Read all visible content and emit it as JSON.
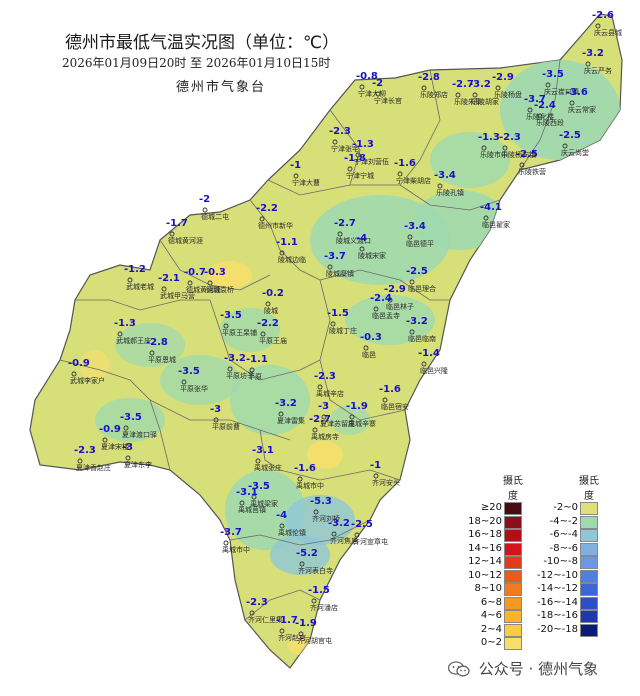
{
  "title": "德州市最低气温实况图（单位：℃）",
  "period": "2026年01月09日20时  至  2026年01月10日15时",
  "agency": "德州市气象台",
  "legend": {
    "header_left": "摄氏\n度",
    "header_right": "摄氏\n度",
    "warm": [
      {
        "label": "≥20",
        "color": "#4a0a14"
      },
      {
        "label": "18~20",
        "color": "#8a0f1c"
      },
      {
        "label": "16~18",
        "color": "#b01015"
      },
      {
        "label": "14~16",
        "color": "#d4141a"
      },
      {
        "label": "12~14",
        "color": "#e33a18"
      },
      {
        "label": "10~12",
        "color": "#eb5a1c"
      },
      {
        "label": "8~10",
        "color": "#f07a1e"
      },
      {
        "label": "6~8",
        "color": "#f39a22"
      },
      {
        "label": "4~6",
        "color": "#f6b52c"
      },
      {
        "label": "2~4",
        "color": "#f8cc44"
      },
      {
        "label": "0~2",
        "color": "#f7df6a"
      }
    ],
    "cold": [
      {
        "label": "-2~0",
        "color": "#dfe07a"
      },
      {
        "label": "-4~-2",
        "color": "#9ed9b0"
      },
      {
        "label": "-6~-4",
        "color": "#8fc7d8"
      },
      {
        "label": "-8~-6",
        "color": "#7fb0e2"
      },
      {
        "label": "-10~-8",
        "color": "#6a98e4"
      },
      {
        "label": "-12~-10",
        "color": "#517fdf"
      },
      {
        "label": "-14~-12",
        "color": "#3a66d6"
      },
      {
        "label": "-16~-14",
        "color": "#2a50c4"
      },
      {
        "label": "-18~-16",
        "color": "#1e3aa8"
      },
      {
        "label": "-20~-18",
        "color": "#0c1a78"
      }
    ]
  },
  "stations": [
    {
      "value": "-2.6",
      "name": "庆云县城"
    },
    {
      "value": "-3.2",
      "name": "庆云严务"
    },
    {
      "value": "-3.5",
      "name": "庆云崔口镇"
    },
    {
      "value": "-3.6",
      "name": "庆云常家"
    },
    {
      "value": "-2.5",
      "name": "庆云尚堂"
    },
    {
      "value": "-2.9",
      "name": "乐陵杨盘"
    },
    {
      "value": "-2.7",
      "name": "乐陵朱集"
    },
    {
      "value": "-3.2",
      "name": "乐陵胡家"
    },
    {
      "value": "-2.8",
      "name": "乐陵郑店"
    },
    {
      "value": "-3.7",
      "name": "乐陵化楼"
    },
    {
      "value": "-2.4",
      "name": "乐陵西段"
    },
    {
      "value": "-2.5",
      "name": "乐陵铁营"
    },
    {
      "value": "-1.3",
      "name": "乐陵市中"
    },
    {
      "value": "-2.3",
      "name": "乐陵杨安镇"
    },
    {
      "value": "-0.8",
      "name": "宁津大柳"
    },
    {
      "value": "-2",
      "name": "宁津长官"
    },
    {
      "value": "-2.3",
      "name": "宁津张宅"
    },
    {
      "value": "-1.3",
      "name": "宁津刘营伍"
    },
    {
      "value": "-1.8",
      "name": "宁津宁城"
    },
    {
      "value": "-1.6",
      "name": "宁津柴胡店"
    },
    {
      "value": "-3.4",
      "name": "乐陵孔镇"
    },
    {
      "value": "-1",
      "name": "宁津大曹"
    },
    {
      "value": "-2",
      "name": "德城二屯"
    },
    {
      "value": "-2.2",
      "name": "德州市新华"
    },
    {
      "value": "-1.7",
      "name": "德城黄河涯"
    },
    {
      "value": "-2.7",
      "name": "陵城义渡口"
    },
    {
      "value": "-3.4",
      "name": "临邑德平"
    },
    {
      "value": "-4.1",
      "name": "临邑翟家"
    },
    {
      "value": "-1.1",
      "name": "陵城边临"
    },
    {
      "value": "-3.7",
      "name": "陵城糜镇"
    },
    {
      "value": "-4",
      "name": "陵城宋家"
    },
    {
      "value": "-2.5",
      "name": "临邑理合"
    },
    {
      "value": "-1.2",
      "name": "武城老城"
    },
    {
      "value": "-2.1",
      "name": "武城甲马营"
    },
    {
      "value": "-0.7",
      "name": "德城黄河涯"
    },
    {
      "value": "-0.3",
      "name": "德城袁桥"
    },
    {
      "value": "-0.2",
      "name": "陵城"
    },
    {
      "value": "-2.9",
      "name": "临邑林子"
    },
    {
      "value": "-2.4",
      "name": "临邑孟寺"
    },
    {
      "value": "-1.5",
      "name": "陵城丁庄"
    },
    {
      "value": "-3.5",
      "name": "平原王杲铺"
    },
    {
      "value": "-2.2",
      "name": "平原王庙"
    },
    {
      "value": "-1.3",
      "name": "武城郝王庄"
    },
    {
      "value": "-2.8",
      "name": "平原恩城"
    },
    {
      "value": "-3.2",
      "name": "临邑临南"
    },
    {
      "value": "-0.3",
      "name": "临邑"
    },
    {
      "value": "-1.4",
      "name": "临邑兴隆"
    },
    {
      "value": "-0.9",
      "name": "武城李家户"
    },
    {
      "value": "-3.2",
      "name": "平原坊子"
    },
    {
      "value": "-1.1",
      "name": "平原"
    },
    {
      "value": "-3.5",
      "name": "平原张华"
    },
    {
      "value": "-2.3",
      "name": "禹城辛店"
    },
    {
      "value": "-1.6",
      "name": "临邑宿安"
    },
    {
      "value": "-3.2",
      "name": "夏津雷集"
    },
    {
      "value": "-3",
      "name": "夏津苏留庄"
    },
    {
      "value": "-3.5",
      "name": "夏津渡口驿"
    },
    {
      "value": "-3",
      "name": "平原前曹"
    },
    {
      "value": "-2.7",
      "name": "禹城房寺"
    },
    {
      "value": "-1.9",
      "name": "禹城辛寨"
    },
    {
      "value": "-2.3",
      "name": "夏津香赵庄"
    },
    {
      "value": "-0.9",
      "name": "夏津宋楼"
    },
    {
      "value": "-3",
      "name": "夏津东李"
    },
    {
      "value": "-3.1",
      "name": "禹城张庄"
    },
    {
      "value": "-1.6",
      "name": "禹城市中"
    },
    {
      "value": "-1",
      "name": "齐河安头"
    },
    {
      "value": "-3.5",
      "name": "禹城梁家"
    },
    {
      "value": "-3.1",
      "name": "禹城莒镇"
    },
    {
      "value": "-5.3",
      "name": "齐河刘桥"
    },
    {
      "value": "-4",
      "name": "禹城伦镇"
    },
    {
      "value": "-3.2",
      "name": "齐河焦庙"
    },
    {
      "value": "-2.5",
      "name": "齐河宣章屯"
    },
    {
      "value": "-3.7",
      "name": "禹城市中"
    },
    {
      "value": "-5.2",
      "name": "齐河表白寺"
    },
    {
      "value": "-1.5",
      "name": "齐河潘店"
    },
    {
      "value": "-2.3",
      "name": "齐河仁里集"
    },
    {
      "value": "-1.7",
      "name": "齐河赵官"
    },
    {
      "value": "-1.9",
      "name": "齐河胡官屯"
    }
  ],
  "watermark": "公众号 · 德州气象"
}
